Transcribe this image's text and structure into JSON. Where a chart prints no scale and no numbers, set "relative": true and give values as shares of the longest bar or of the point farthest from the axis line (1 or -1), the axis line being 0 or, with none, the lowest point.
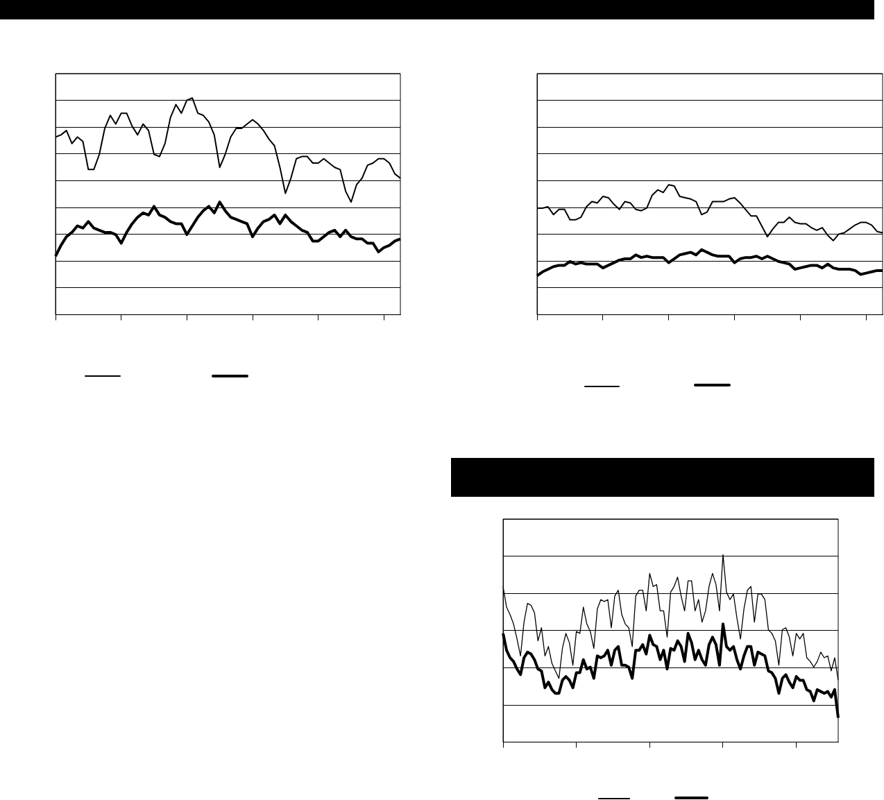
{
  "chart_data": [
    {
      "type": "line",
      "relative": true,
      "grid": "y",
      "categories": [
        null,
        null,
        null,
        null,
        null,
        null,
        null,
        null,
        null,
        null,
        null,
        null,
        null,
        null,
        null,
        null,
        null,
        null,
        null,
        null,
        null,
        null,
        null,
        null,
        null,
        null,
        null,
        null,
        null,
        null,
        null,
        null,
        null,
        null,
        null,
        null,
        null,
        null,
        null,
        null,
        null,
        null,
        null,
        null,
        null,
        null,
        null,
        null,
        null,
        null,
        null,
        null,
        null,
        null,
        null,
        null,
        null,
        null,
        null,
        null,
        null,
        null,
        null,
        null
      ],
      "series": [
        {
          "color": "#000000",
          "values": [
            0.82,
            0.83,
            0.85,
            0.79,
            0.82,
            0.8,
            0.67,
            0.67,
            0.74,
            0.86,
            0.92,
            0.88,
            0.93,
            0.93,
            0.87,
            0.83,
            0.88,
            0.85,
            0.74,
            0.73,
            0.79,
            0.91,
            0.97,
            0.93,
            0.99,
            1,
            0.93,
            0.92,
            0.89,
            0.83,
            0.68,
            0.74,
            0.82,
            0.86,
            0.86,
            0.88,
            0.9,
            0.88,
            0.85,
            0.81,
            0.78,
            0.68,
            0.56,
            0.63,
            0.72,
            0.73,
            0.73,
            0.7,
            0.7,
            0.72,
            0.7,
            0.68,
            0.67,
            0.57,
            0.52,
            0.6,
            0.63,
            0.69,
            0.7,
            0.72,
            0.72,
            0.7,
            0.65,
            0.63
          ]
        },
        {
          "color": "#000000",
          "values": [
            0.27,
            0.32,
            0.36,
            0.38,
            0.41,
            0.4,
            0.43,
            0.4,
            0.39,
            0.38,
            0.38,
            0.37,
            0.33,
            0.38,
            0.42,
            0.45,
            0.47,
            0.46,
            0.5,
            0.46,
            0.45,
            0.43,
            0.42,
            0.42,
            0.37,
            0.41,
            0.45,
            0.48,
            0.5,
            0.47,
            0.52,
            0.48,
            0.45,
            0.44,
            0.43,
            0.42,
            0.36,
            0.4,
            0.43,
            0.44,
            0.46,
            0.42,
            0.46,
            0.43,
            0.41,
            0.39,
            0.38,
            0.34,
            0.34,
            0.36,
            0.38,
            0.39,
            0.36,
            0.39,
            0.36,
            0.35,
            0.35,
            0.33,
            0.33,
            0.29,
            0.31,
            0.32,
            0.34,
            0.35
          ]
        }
      ]
    },
    {
      "type": "line",
      "relative": true,
      "grid": "y",
      "categories": [
        null,
        null,
        null,
        null,
        null,
        null,
        null,
        null,
        null,
        null,
        null,
        null,
        null,
        null,
        null,
        null,
        null,
        null,
        null,
        null,
        null,
        null,
        null,
        null,
        null,
        null,
        null,
        null,
        null,
        null,
        null,
        null,
        null,
        null,
        null,
        null,
        null,
        null,
        null,
        null,
        null,
        null,
        null,
        null,
        null,
        null,
        null,
        null,
        null,
        null,
        null,
        null,
        null,
        null,
        null,
        null,
        null,
        null,
        null,
        null,
        null,
        null,
        null,
        null
      ],
      "series": [
        {
          "color": "#000000",
          "values": [
            0.82,
            0.82,
            0.83,
            0.77,
            0.81,
            0.81,
            0.73,
            0.73,
            0.75,
            0.83,
            0.87,
            0.86,
            0.91,
            0.9,
            0.85,
            0.81,
            0.87,
            0.86,
            0.81,
            0.8,
            0.82,
            0.92,
            0.96,
            0.94,
            1,
            0.99,
            0.91,
            0.9,
            0.89,
            0.87,
            0.77,
            0.79,
            0.87,
            0.87,
            0.87,
            0.89,
            0.9,
            0.86,
            0.81,
            0.76,
            0.76,
            0.68,
            0.6,
            0.66,
            0.71,
            0.71,
            0.75,
            0.71,
            0.7,
            0.7,
            0.67,
            0.65,
            0.67,
            0.61,
            0.57,
            0.62,
            0.63,
            0.66,
            0.69,
            0.71,
            0.71,
            0.69,
            0.64,
            0.63
          ]
        },
        {
          "color": "#000000",
          "values": [
            0.3,
            0.33,
            0.35,
            0.37,
            0.38,
            0.38,
            0.41,
            0.39,
            0.4,
            0.39,
            0.39,
            0.39,
            0.36,
            0.38,
            0.4,
            0.42,
            0.43,
            0.43,
            0.46,
            0.44,
            0.45,
            0.44,
            0.44,
            0.44,
            0.4,
            0.43,
            0.46,
            0.47,
            0.48,
            0.46,
            0.5,
            0.48,
            0.46,
            0.45,
            0.45,
            0.45,
            0.4,
            0.43,
            0.44,
            0.44,
            0.45,
            0.43,
            0.45,
            0.43,
            0.41,
            0.4,
            0.39,
            0.35,
            0.36,
            0.37,
            0.38,
            0.38,
            0.36,
            0.39,
            0.36,
            0.35,
            0.35,
            0.35,
            0.34,
            0.31,
            0.32,
            0.33,
            0.34,
            0.34
          ]
        }
      ]
    },
    {
      "type": "line",
      "relative": true,
      "grid": "y",
      "categories": [
        null,
        null,
        null,
        null,
        null,
        null,
        null,
        null,
        null,
        null,
        null,
        null,
        null,
        null,
        null,
        null,
        null,
        null,
        null,
        null,
        null,
        null,
        null,
        null,
        null,
        null,
        null,
        null,
        null,
        null,
        null,
        null,
        null,
        null,
        null,
        null,
        null,
        null,
        null,
        null,
        null,
        null,
        null,
        null,
        null,
        null,
        null,
        null,
        null,
        null,
        null,
        null,
        null,
        null,
        null,
        null,
        null,
        null,
        null,
        null,
        null,
        null,
        null,
        null,
        null,
        null,
        null,
        null,
        null,
        null,
        null,
        null,
        null,
        null,
        null,
        null,
        null,
        null,
        null,
        null,
        null,
        null,
        null,
        null,
        null,
        null,
        null,
        null,
        null,
        null,
        null,
        null,
        null,
        null,
        null,
        null,
        null
      ],
      "series": [
        {
          "color": "#000000",
          "values": [
            0.83,
            0.72,
            0.68,
            0.63,
            0.55,
            0.46,
            0.64,
            0.74,
            0.73,
            0.69,
            0.54,
            0.61,
            0.46,
            0.51,
            0.42,
            0.38,
            0.34,
            0.5,
            0.58,
            0.53,
            0.41,
            0.59,
            0.58,
            0.72,
            0.63,
            0.59,
            0.5,
            0.71,
            0.76,
            0.75,
            0.76,
            0.61,
            0.78,
            0.81,
            0.68,
            0.63,
            0.61,
            0.51,
            0.78,
            0.81,
            0.81,
            0.7,
            0.9,
            0.83,
            0.84,
            0.7,
            0.7,
            0.56,
            0.8,
            0.83,
            0.88,
            0.78,
            0.7,
            0.86,
            0.86,
            0.7,
            0.76,
            0.64,
            0.7,
            0.83,
            0.9,
            0.84,
            0.7,
            1,
            0.8,
            0.76,
            0.79,
            0.66,
            0.55,
            0.71,
            0.81,
            0.83,
            0.64,
            0.79,
            0.79,
            0.76,
            0.6,
            0.58,
            0.54,
            0.41,
            0.6,
            0.61,
            0.56,
            0.46,
            0.58,
            0.55,
            0.58,
            0.45,
            0.43,
            0.4,
            0.43,
            0.48,
            0.45,
            0.46,
            0.38,
            0.45,
            0.33
          ]
        },
        {
          "color": "#000000",
          "values": [
            0.58,
            0.49,
            0.45,
            0.43,
            0.39,
            0.36,
            0.45,
            0.48,
            0.47,
            0.44,
            0.39,
            0.38,
            0.29,
            0.32,
            0.28,
            0.26,
            0.26,
            0.33,
            0.35,
            0.33,
            0.29,
            0.37,
            0.37,
            0.44,
            0.39,
            0.4,
            0.34,
            0.46,
            0.45,
            0.46,
            0.49,
            0.41,
            0.49,
            0.51,
            0.41,
            0.41,
            0.4,
            0.34,
            0.49,
            0.49,
            0.52,
            0.47,
            0.57,
            0.52,
            0.51,
            0.44,
            0.49,
            0.39,
            0.5,
            0.49,
            0.54,
            0.51,
            0.43,
            0.58,
            0.53,
            0.44,
            0.49,
            0.44,
            0.41,
            0.52,
            0.56,
            0.52,
            0.41,
            0.63,
            0.51,
            0.49,
            0.51,
            0.44,
            0.39,
            0.46,
            0.51,
            0.51,
            0.41,
            0.48,
            0.47,
            0.46,
            0.38,
            0.37,
            0.34,
            0.26,
            0.34,
            0.36,
            0.32,
            0.29,
            0.35,
            0.33,
            0.33,
            0.28,
            0.27,
            0.22,
            0.28,
            0.27,
            0.26,
            0.27,
            0.24,
            0.28,
            0.13
          ]
        }
      ]
    }
  ]
}
